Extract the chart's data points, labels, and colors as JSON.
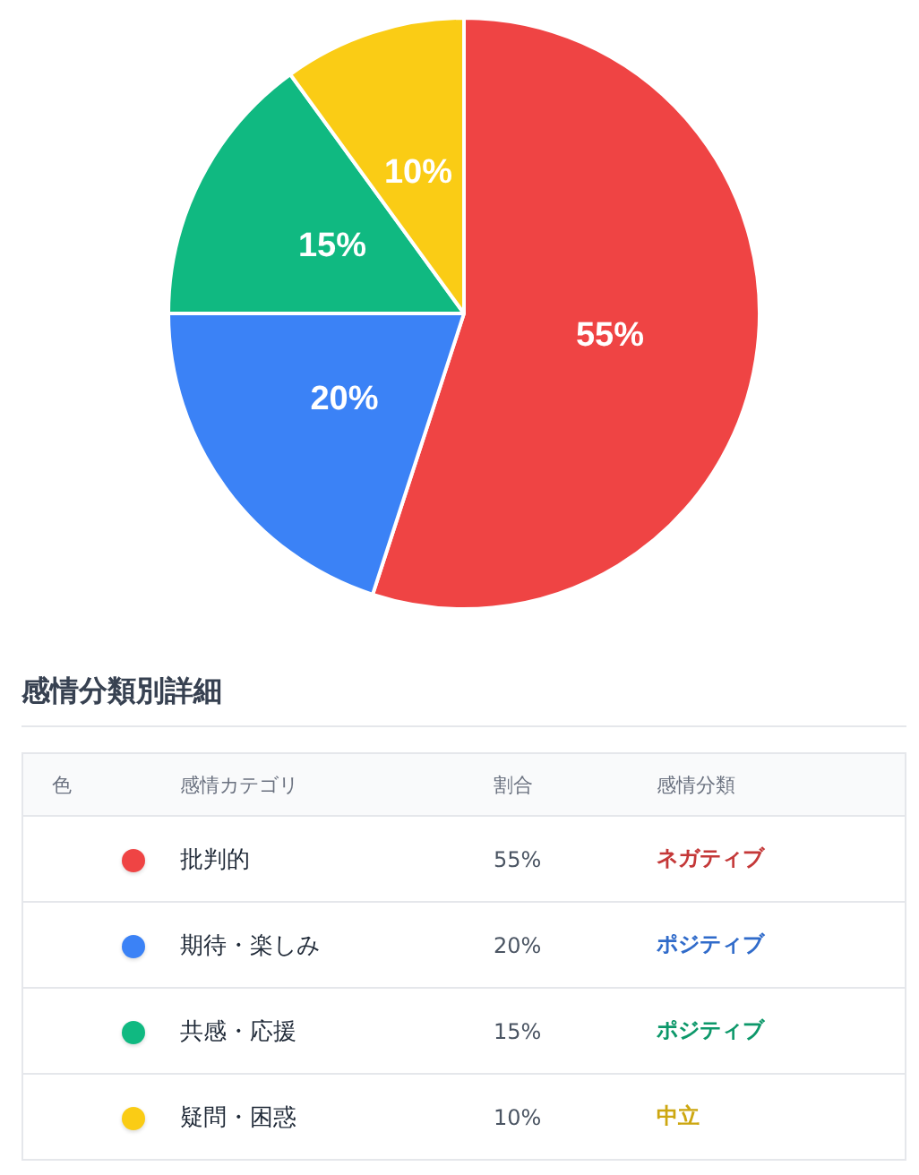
{
  "chart_data": {
    "type": "pie",
    "title": "感情分類別詳細",
    "categories": [
      "批判的",
      "期待・楽しみ",
      "共感・応援",
      "疑問・困惑"
    ],
    "values": [
      55,
      20,
      15,
      10
    ],
    "value_labels": [
      "55%",
      "20%",
      "15%",
      "10%"
    ],
    "colors": [
      "#ef4444",
      "#3b82f6",
      "#10b981",
      "#facc15"
    ],
    "legend": "bottom",
    "annotations": [
      "色",
      "感情カテゴリ",
      "割合",
      "感情分類",
      "ネガティブ",
      "ポジティブ",
      "ポジティブ",
      "中立"
    ]
  }
}
